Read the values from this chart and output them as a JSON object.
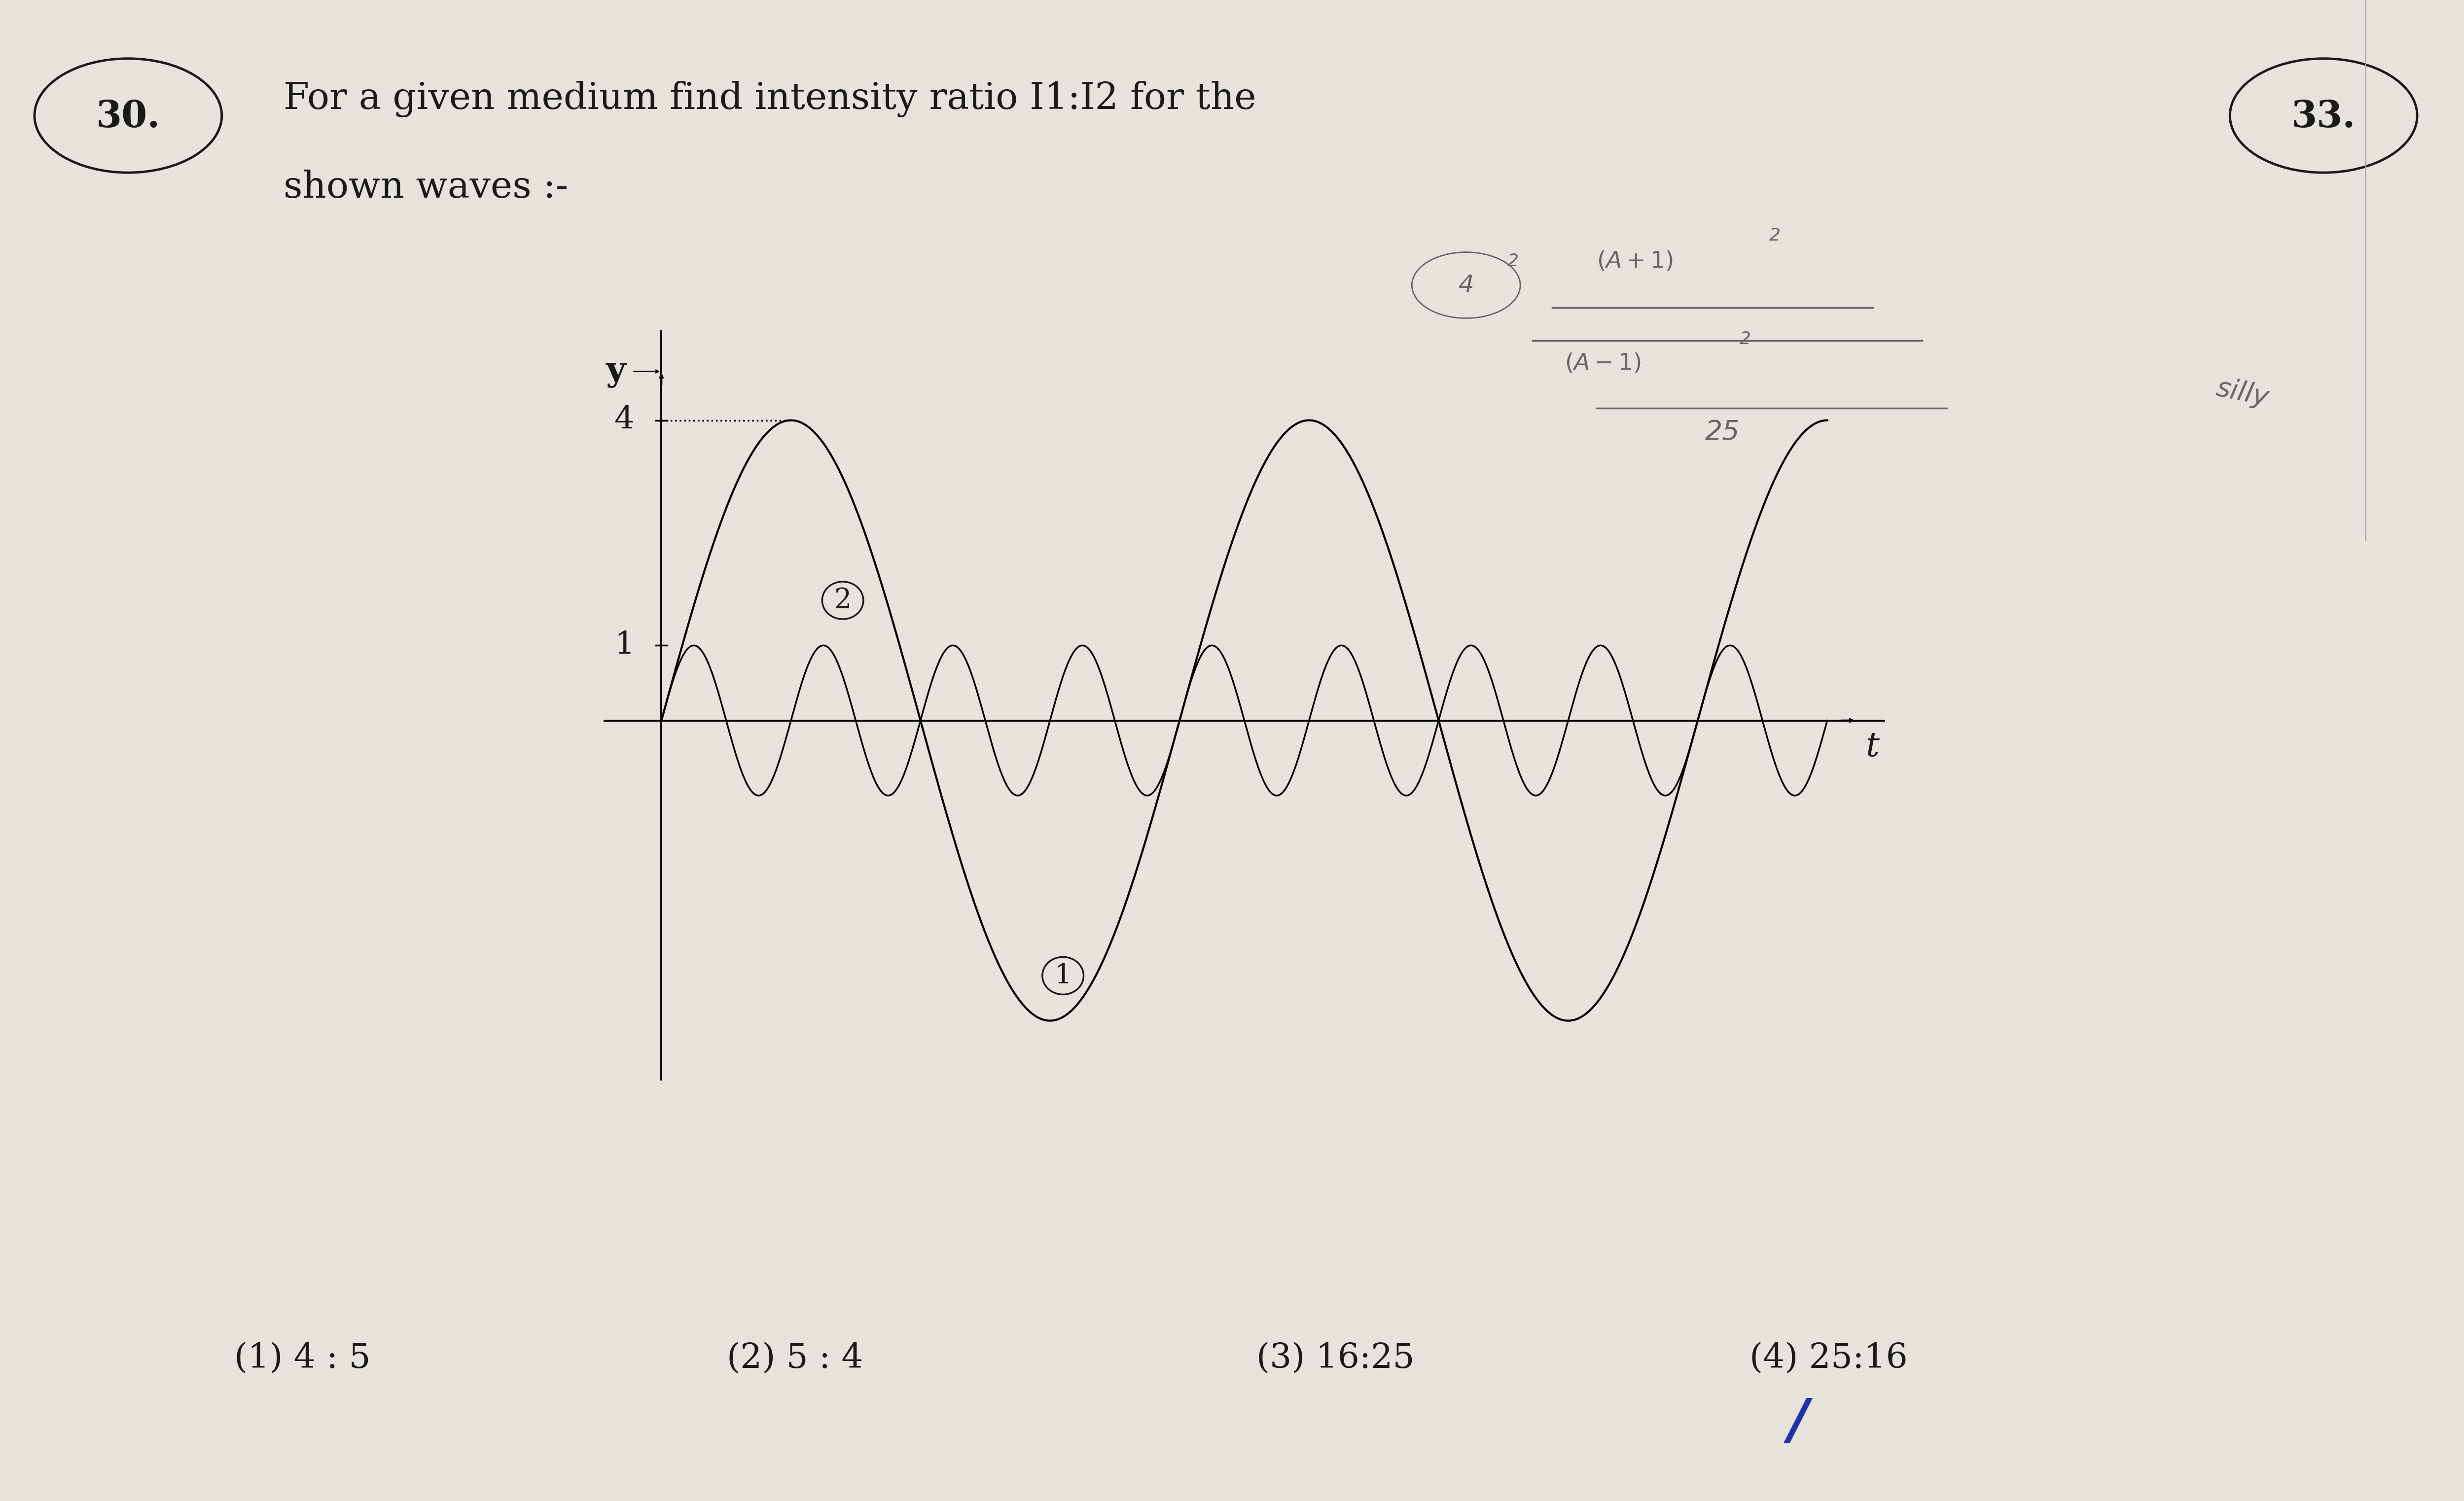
{
  "bg_color": "#e6e2dc",
  "text_color": "#1a1a1a",
  "title_q_num": "30.",
  "title_text_line1": "For a given medium find intensity ratio I1:I2 for the",
  "title_text_line2": "shown waves :-",
  "q_num_right": "33.",
  "wave1_amplitude": 4.0,
  "wave2_amplitude": 1.0,
  "omega1": 1.0,
  "omega2": 4.0,
  "y_label": "y",
  "t_label": "t",
  "y_tick_1": "1",
  "y_tick_4": "4",
  "wave1_label": "1",
  "wave2_label": "2",
  "options": [
    "(1) 4 : 5",
    "(2) 5 : 4",
    "(3) 16:25",
    "(4) 25:16"
  ],
  "checkmark_color": "#2233aa",
  "font_size_title": 54,
  "font_size_options": 50,
  "font_size_qnum": 54,
  "hw_color": "#666666"
}
